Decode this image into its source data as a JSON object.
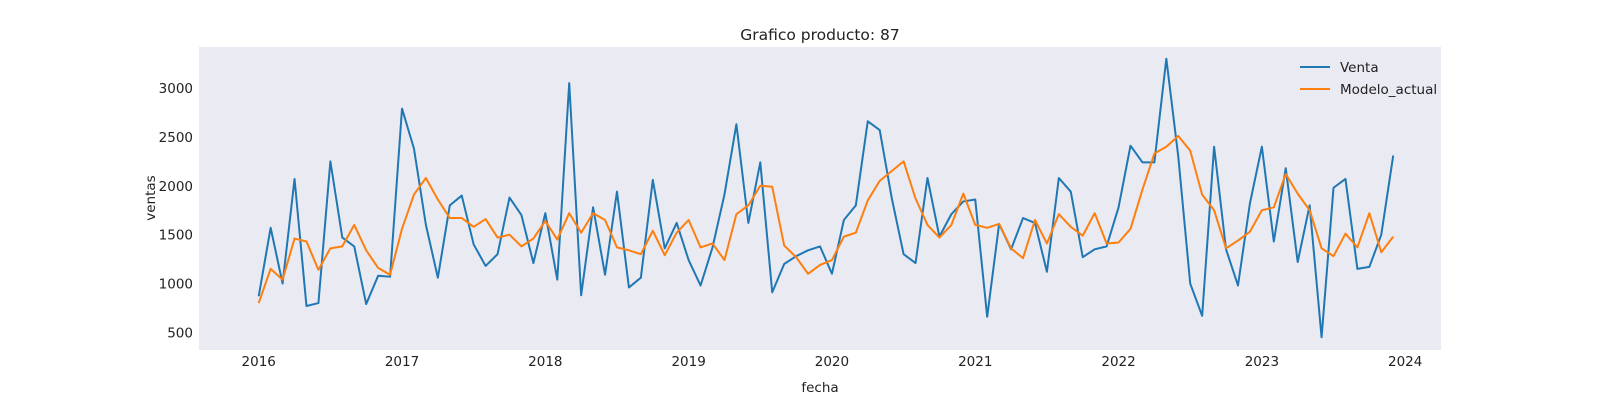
{
  "chart_data": {
    "type": "line",
    "title": "Grafico producto: 87",
    "xlabel": "fecha",
    "ylabel": "ventas",
    "x_start": "2016-01",
    "x_frequency": "monthly",
    "xlim": [
      "2015-08",
      "2024-04"
    ],
    "ylim": [
      320,
      3420
    ],
    "x_ticks": [
      "2016",
      "2017",
      "2018",
      "2019",
      "2020",
      "2021",
      "2022",
      "2023",
      "2024"
    ],
    "y_ticks": [
      500,
      1000,
      1500,
      2000,
      2500,
      3000
    ],
    "grid": false,
    "legend_position": "top-right",
    "background_color": "#eaeaf2",
    "series": [
      {
        "name": "Venta",
        "color": "#1f77b4",
        "values": [
          870,
          1570,
          1000,
          2070,
          770,
          800,
          2250,
          1470,
          1380,
          790,
          1080,
          1070,
          2790,
          2380,
          1600,
          1060,
          1800,
          1900,
          1400,
          1180,
          1300,
          1880,
          1700,
          1210,
          1720,
          1040,
          3050,
          880,
          1780,
          1090,
          1940,
          960,
          1060,
          2060,
          1360,
          1620,
          1240,
          980,
          1370,
          1910,
          2630,
          1620,
          2240,
          910,
          1200,
          1280,
          1340,
          1380,
          1100,
          1650,
          1800,
          2660,
          2570,
          1880,
          1300,
          1210,
          2080,
          1480,
          1710,
          1840,
          1860,
          660,
          1610,
          1350,
          1670,
          1620,
          1120,
          2080,
          1940,
          1270,
          1350,
          1380,
          1780,
          2410,
          2240,
          2240,
          3300,
          2300,
          1000,
          670,
          2400,
          1350,
          980,
          1820,
          2400,
          1430,
          2180,
          1220,
          1800,
          450,
          1980,
          2070,
          1150,
          1170,
          1500,
          2310
        ]
      },
      {
        "name": "Modelo_actual",
        "color": "#ff7f0e",
        "values": [
          800,
          1150,
          1040,
          1460,
          1430,
          1140,
          1360,
          1380,
          1600,
          1340,
          1160,
          1090,
          1560,
          1910,
          2080,
          1860,
          1670,
          1670,
          1580,
          1660,
          1470,
          1500,
          1380,
          1460,
          1640,
          1450,
          1720,
          1520,
          1720,
          1650,
          1370,
          1340,
          1300,
          1540,
          1290,
          1520,
          1650,
          1370,
          1410,
          1240,
          1710,
          1800,
          2000,
          1990,
          1390,
          1270,
          1100,
          1190,
          1240,
          1480,
          1520,
          1850,
          2050,
          2150,
          2250,
          1870,
          1600,
          1470,
          1600,
          1920,
          1600,
          1570,
          1610,
          1360,
          1260,
          1650,
          1410,
          1710,
          1580,
          1490,
          1720,
          1410,
          1420,
          1560,
          1960,
          2330,
          2400,
          2510,
          2360,
          1910,
          1750,
          1360,
          1440,
          1530,
          1750,
          1780,
          2120,
          1920,
          1750,
          1360,
          1280,
          1510,
          1370,
          1720,
          1320,
          1480
        ]
      }
    ]
  }
}
